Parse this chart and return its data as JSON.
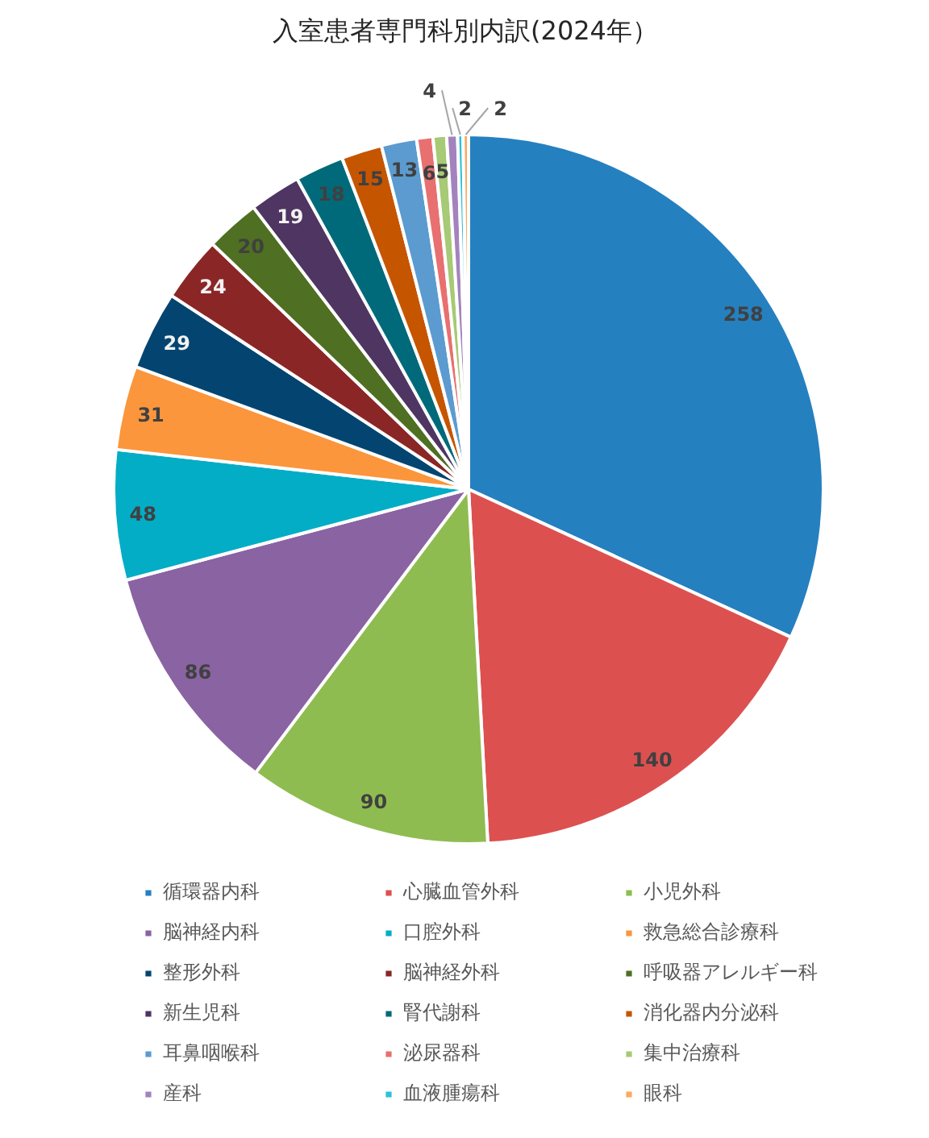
{
  "chart_data": {
    "type": "pie",
    "title": "入室患者専門科別内訳(2024年）",
    "categories": [
      "循環器内科",
      "心臓血管外科",
      "小児外科",
      "脳神経内科",
      "口腔外科",
      "救急総合診療科",
      "整形外科",
      "脳神経外科",
      "呼吸器アレルギー科",
      "新生児科",
      "腎代謝科",
      "消化器内分泌科",
      "耳鼻咽喉科",
      "泌尿器科",
      "集中治療科",
      "産科",
      "血液腫瘍科",
      "眼科"
    ],
    "values": [
      258,
      140,
      90,
      86,
      48,
      31,
      29,
      24,
      20,
      19,
      18,
      15,
      13,
      6,
      5,
      4,
      2,
      2
    ],
    "colors": [
      "#2580c0",
      "#dd5050",
      "#8fbc50",
      "#8a63a3",
      "#03adc6",
      "#fb963c",
      "#034570",
      "#8b2626",
      "#4f6f22",
      "#4e3562",
      "#006a7a",
      "#c65500",
      "#5b9bd0",
      "#e87070",
      "#a6ca75",
      "#a383bd",
      "#2dc1d8",
      "#fda860"
    ],
    "data_labels": true,
    "legend": "bottom"
  }
}
